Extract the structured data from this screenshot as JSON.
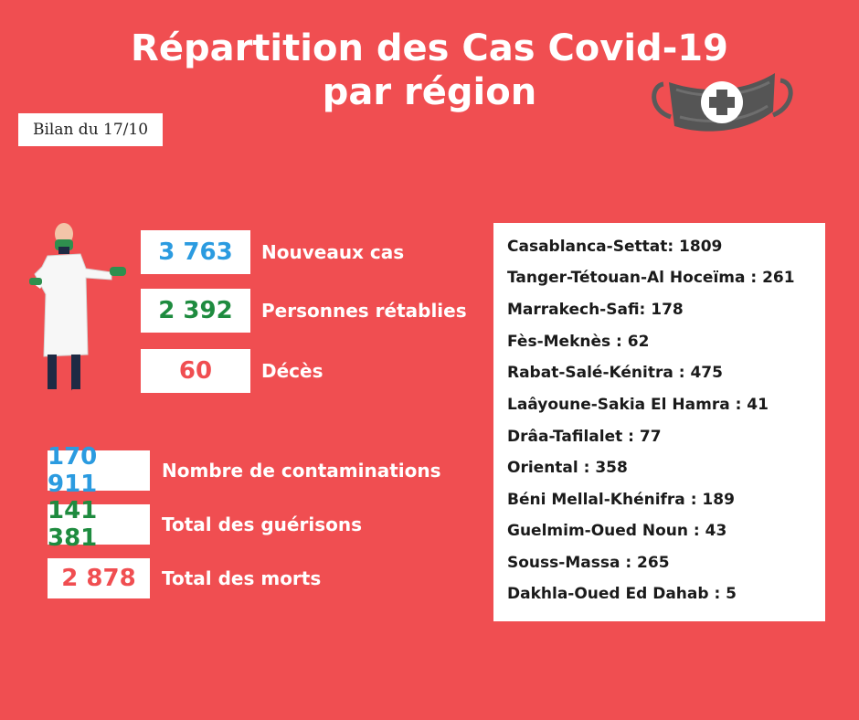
{
  "header": {
    "title_line1": "Répartition des Cas Covid-19",
    "title_line2": "par région",
    "date_label": "Bilan du 17/10"
  },
  "daily_stats": [
    {
      "value": "3 763",
      "label": "Nouveaux cas",
      "color": "#2b9be0"
    },
    {
      "value": "2 392",
      "label": "Personnes rétablies",
      "color": "#1e8b3f"
    },
    {
      "value": "60",
      "label": "Décès",
      "color": "#f04e51"
    }
  ],
  "total_stats": [
    {
      "value": "170 911",
      "label": "Nombre de contaminations",
      "color": "#2b9be0"
    },
    {
      "value": "141 381",
      "label": "Total des guérisons",
      "color": "#1e8b3f"
    },
    {
      "value": "2 878",
      "label": "Total des morts",
      "color": "#f04e51"
    }
  ],
  "regions": [
    "Casablanca-Settat: 1809",
    "Tanger-Tétouan-Al Hoceïma : 261",
    "Marrakech-Safi: 178",
    "Fès-Meknès : 62",
    "Rabat-Salé-Kénitra : 475",
    "Laâyoune-Sakia El Hamra : 41",
    "Drâa-Tafilalet : 77",
    "Oriental : 358",
    "Béni Mellal-Khénifra : 189",
    "Guelmim-Oued Noun : 43",
    "Souss-Massa : 265",
    "Dakhla-Oued Ed Dahab : 5"
  ],
  "icons": {
    "mask": "medical-mask-icon",
    "doctor": "doctor-illustration"
  },
  "colors": {
    "background": "#f04e51",
    "blue": "#2b9be0",
    "green": "#1e8b3f",
    "red": "#f04e51"
  }
}
